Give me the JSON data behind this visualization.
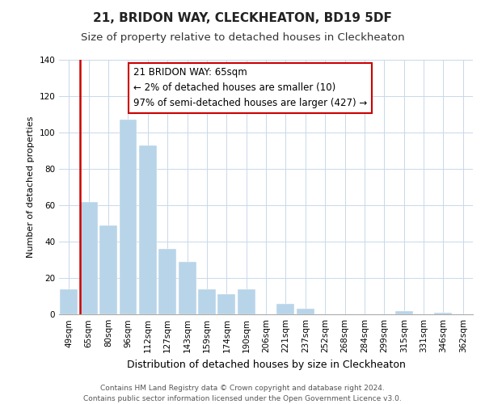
{
  "title": "21, BRIDON WAY, CLECKHEATON, BD19 5DF",
  "subtitle": "Size of property relative to detached houses in Cleckheaton",
  "xlabel": "Distribution of detached houses by size in Cleckheaton",
  "ylabel": "Number of detached properties",
  "bar_labels": [
    "49sqm",
    "65sqm",
    "80sqm",
    "96sqm",
    "112sqm",
    "127sqm",
    "143sqm",
    "159sqm",
    "174sqm",
    "190sqm",
    "206sqm",
    "221sqm",
    "237sqm",
    "252sqm",
    "268sqm",
    "284sqm",
    "299sqm",
    "315sqm",
    "331sqm",
    "346sqm",
    "362sqm"
  ],
  "bar_values": [
    14,
    62,
    49,
    107,
    93,
    36,
    29,
    14,
    11,
    14,
    0,
    6,
    3,
    0,
    0,
    0,
    0,
    2,
    0,
    1,
    0
  ],
  "bar_color": "#b8d4e8",
  "highlight_bar_index": 1,
  "highlight_color": "#cc0000",
  "ylim": [
    0,
    140
  ],
  "yticks": [
    0,
    20,
    40,
    60,
    80,
    100,
    120,
    140
  ],
  "annotation_text": "21 BRIDON WAY: 65sqm\n← 2% of detached houses are smaller (10)\n97% of semi-detached houses are larger (427) →",
  "annotation_box_edgecolor": "#cc0000",
  "annotation_box_facecolor": "#ffffff",
  "footer_line1": "Contains HM Land Registry data © Crown copyright and database right 2024.",
  "footer_line2": "Contains public sector information licensed under the Open Government Licence v3.0.",
  "title_fontsize": 11,
  "subtitle_fontsize": 9.5,
  "xlabel_fontsize": 9,
  "ylabel_fontsize": 8,
  "tick_fontsize": 7.5,
  "footer_fontsize": 6.5,
  "annotation_fontsize": 8.5
}
